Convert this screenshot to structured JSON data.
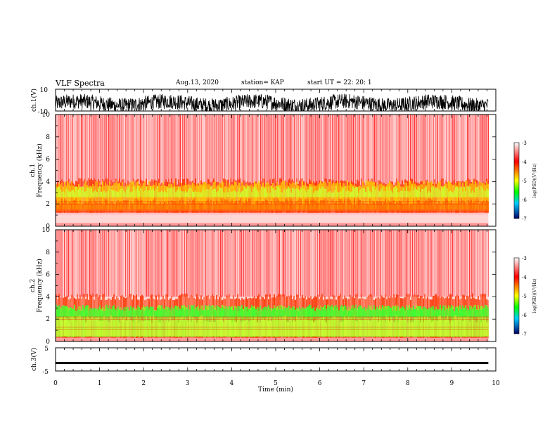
{
  "header": {
    "title": "VLF Spectra",
    "date": "Aug.13, 2020",
    "station": "station= KAP",
    "start": "start UT = 22: 20: 1"
  },
  "chart_data": [
    {
      "type": "line",
      "panel": "ch1-waveform",
      "ylabel": "ch.1(V)",
      "ylim": [
        -10,
        10
      ],
      "yticks": [
        "10",
        "-10"
      ],
      "xlim": [
        0,
        10
      ],
      "description_series": [
        {
          "values_range": [
            -10,
            10
          ]
        }
      ]
    },
    {
      "type": "heatmap",
      "panel": "ch1-spectrogram",
      "ylabel": "ch.1\nFrequency (kHz)",
      "ylabel_line1": "ch.1",
      "ylabel_line2": "Frequency (kHz)",
      "ylim": [
        0,
        10
      ],
      "yticks": [
        "0",
        "2",
        "4",
        "6",
        "8",
        "10"
      ],
      "xlim": [
        0,
        10
      ],
      "colorbar": {
        "label": "log(PSD)(V²/Hz)",
        "range": [
          -7,
          -3
        ],
        "ticks": [
          "-3",
          "-4",
          "-5",
          "-6",
          "-7"
        ]
      }
    },
    {
      "type": "heatmap",
      "panel": "ch2-spectrogram",
      "ylabel_line1": "ch.2",
      "ylabel_line2": "Frequency (kHz)",
      "ylim": [
        0,
        10
      ],
      "yticks": [
        "0",
        "2",
        "4",
        "6",
        "8",
        "10"
      ],
      "xlim": [
        0,
        10
      ],
      "colorbar": {
        "label": "log(PSD)(V²/Hz)",
        "range": [
          -7,
          -3
        ],
        "ticks": [
          "-3",
          "-4",
          "-5",
          "-6",
          "-7"
        ]
      }
    },
    {
      "type": "line",
      "panel": "ch3-waveform",
      "ylabel": "ch.3(V)",
      "ylim": [
        -5,
        5
      ],
      "yticks": [
        "5",
        "-5"
      ],
      "xlim": [
        0,
        10
      ],
      "xlabel": "Time (min)",
      "xticks": [
        "0",
        "1",
        "2",
        "3",
        "4",
        "5",
        "6",
        "7",
        "8",
        "9",
        "10"
      ]
    }
  ],
  "colors": {
    "spec_high": "#ff0000",
    "spec_mid": "#ffff00",
    "spec_low": "#00ff00",
    "waveform": "#000000"
  }
}
